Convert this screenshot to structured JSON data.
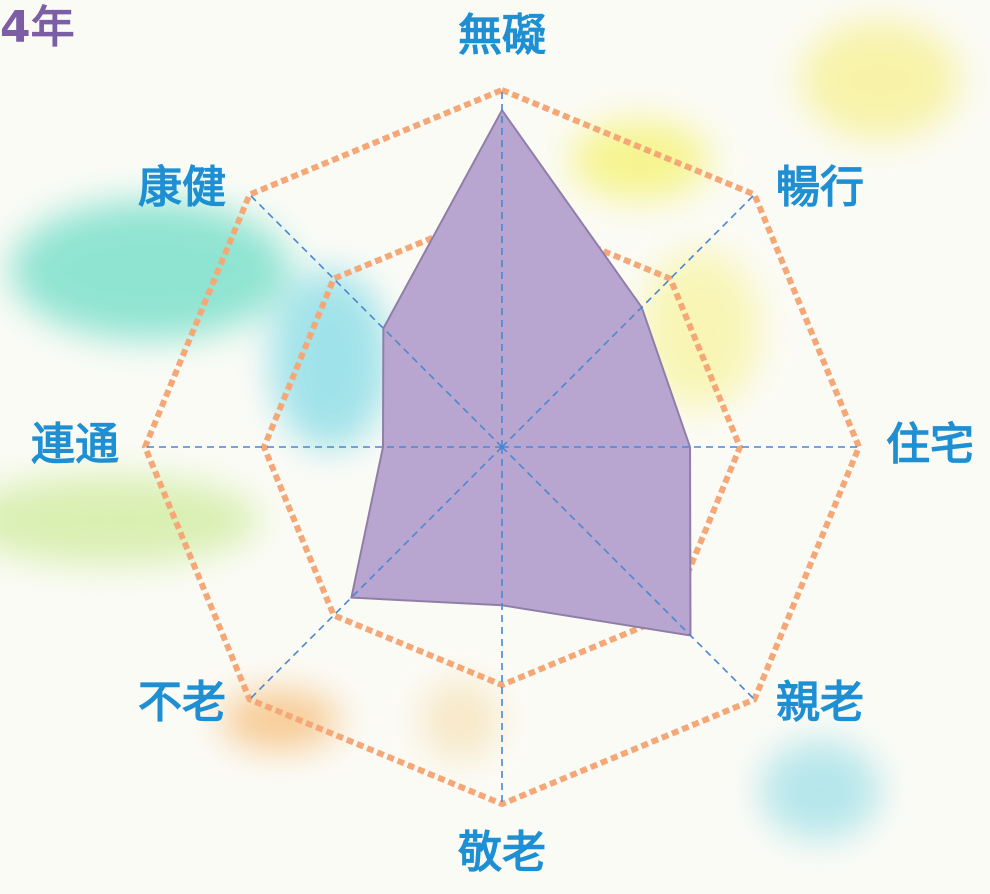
{
  "chart_data": {
    "type": "radar",
    "title": "4年",
    "categories": [
      "無礙",
      "暢行",
      "住宅",
      "親老",
      "敬老",
      "不老",
      "連通",
      "康健"
    ],
    "values": [
      2.83,
      1.66,
      1.58,
      2.24,
      1.33,
      1.79,
      1.0,
      1.41
    ],
    "color": "#b9a6d0",
    "rlim": [
      0,
      3
    ],
    "rticks": [
      2,
      3
    ],
    "grid": true
  }
}
